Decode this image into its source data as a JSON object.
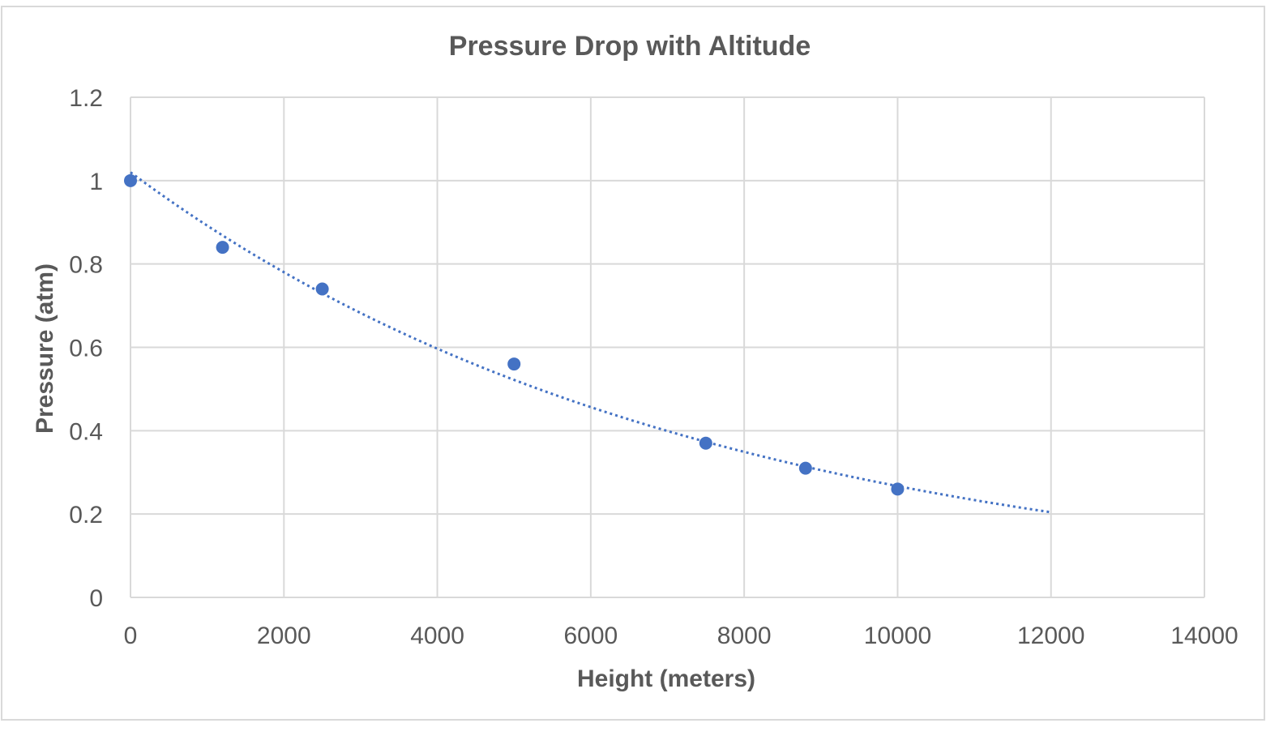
{
  "chart_data": {
    "type": "scatter",
    "title": "Pressure Drop with Altitude",
    "xlabel": "Height (meters)",
    "ylabel": "Pressure (atm)",
    "xlim": [
      0,
      14000
    ],
    "ylim": [
      0,
      1.2
    ],
    "x_ticks": [
      0,
      2000,
      4000,
      6000,
      8000,
      10000,
      12000,
      14000
    ],
    "y_ticks": [
      0,
      0.2,
      0.4,
      0.6,
      0.8,
      1,
      1.2
    ],
    "x_tick_labels": [
      "0",
      "2000",
      "4000",
      "6000",
      "8000",
      "10000",
      "12000",
      "14000"
    ],
    "y_tick_labels": [
      "0",
      "0.2",
      "0.4",
      "0.6",
      "0.8",
      "1",
      "1.2"
    ],
    "grid": true,
    "legend": "none",
    "series": [
      {
        "x": [
          0,
          1200,
          2500,
          5000,
          7500,
          8800,
          10000
        ],
        "y": [
          1.0,
          0.84,
          0.74,
          0.56,
          0.37,
          0.31,
          0.26
        ],
        "color": "#4472c4",
        "marker": "circle"
      }
    ],
    "trendline": {
      "type": "exponential",
      "style": "dotted",
      "color": "#4472c4",
      "x_range": [
        0,
        12000
      ],
      "a": 1.02,
      "b": -0.000134
    }
  }
}
